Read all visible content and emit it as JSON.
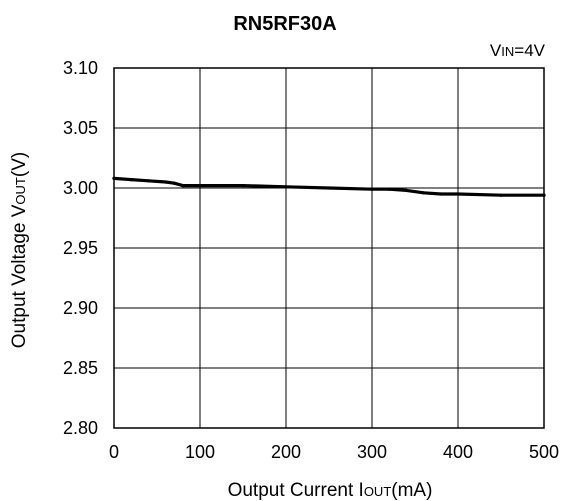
{
  "chart_data": {
    "type": "line",
    "title": "RN5RF30A",
    "condition": {
      "main": "V",
      "sub": "IN",
      "rest": "=4V"
    },
    "xlabel": {
      "pre": "Output Current I",
      "sub": "OUT",
      "post": "(mA)"
    },
    "ylabel": {
      "pre": "Output Voltage V",
      "sub": "OUT",
      "post": "(V)"
    },
    "xlim": [
      0,
      500
    ],
    "ylim": [
      2.8,
      3.1
    ],
    "x_ticks": [
      "0",
      "100",
      "200",
      "300",
      "400",
      "500"
    ],
    "y_ticks": [
      "2.80",
      "2.85",
      "2.90",
      "2.95",
      "3.00",
      "3.05",
      "3.10"
    ],
    "grid": true,
    "series": [
      {
        "x": [
          0,
          20,
          40,
          60,
          70,
          80,
          100,
          150,
          200,
          250,
          300,
          320,
          340,
          360,
          380,
          400,
          450,
          500
        ],
        "y": [
          3.008,
          3.007,
          3.006,
          3.005,
          3.004,
          3.002,
          3.002,
          3.002,
          3.001,
          3.0,
          2.999,
          2.999,
          2.998,
          2.996,
          2.995,
          2.995,
          2.994,
          2.994
        ]
      }
    ]
  }
}
